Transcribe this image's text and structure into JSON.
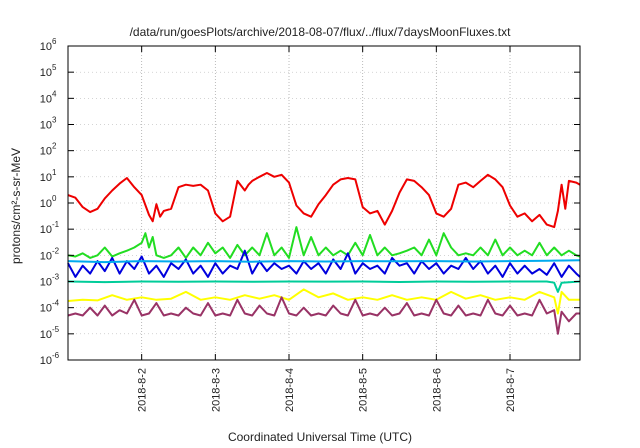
{
  "chart_data": {
    "type": "line",
    "title": "/data/run/goesPlots/archive/2018-08-07/flux/../flux/7daysMoonFluxes.txt",
    "xlabel": "Coordinated Universal Time (UTC)",
    "ylabel": "protons/cm²-s-sr-MeV",
    "y_scale": "log",
    "ylim": [
      1e-06,
      1000000.0
    ],
    "y_ticks": [
      {
        "label": "10",
        "exp": "-6",
        "value": 1e-06
      },
      {
        "label": "10",
        "exp": "-5",
        "value": 1e-05
      },
      {
        "label": "10",
        "exp": "-4",
        "value": 0.0001
      },
      {
        "label": "10",
        "exp": "-3",
        "value": 0.001
      },
      {
        "label": "10",
        "exp": "-2",
        "value": 0.01
      },
      {
        "label": "10",
        "exp": "-1",
        "value": 0.1
      },
      {
        "label": "10",
        "exp": "0",
        "value": 1
      },
      {
        "label": "10",
        "exp": "1",
        "value": 10
      },
      {
        "label": "10",
        "exp": "2",
        "value": 100
      },
      {
        "label": "10",
        "exp": "3",
        "value": 1000
      },
      {
        "label": "10",
        "exp": "4",
        "value": 10000
      },
      {
        "label": "10",
        "exp": "5",
        "value": 100000
      },
      {
        "label": "10",
        "exp": "6",
        "value": 1000000
      }
    ],
    "x_ticks": [
      "2018-8-2",
      "2018-8-3",
      "2018-8-4",
      "2018-8-5",
      "2018-8-6",
      "2018-8-7"
    ],
    "xlim_days": [
      1.0,
      7.95
    ],
    "grid": true,
    "series": [
      {
        "color": "#ee0000",
        "x": [
          1.0,
          1.1,
          1.2,
          1.3,
          1.4,
          1.5,
          1.6,
          1.7,
          1.8,
          1.9,
          2.0,
          2.1,
          2.15,
          2.2,
          2.25,
          2.3,
          2.4,
          2.5,
          2.6,
          2.7,
          2.8,
          2.9,
          3.0,
          3.1,
          3.2,
          3.3,
          3.4,
          3.45,
          3.5,
          3.6,
          3.7,
          3.8,
          3.9,
          4.0,
          4.1,
          4.2,
          4.3,
          4.4,
          4.5,
          4.6,
          4.7,
          4.8,
          4.9,
          5.0,
          5.1,
          5.2,
          5.3,
          5.4,
          5.5,
          5.6,
          5.7,
          5.8,
          5.9,
          6.0,
          6.1,
          6.2,
          6.3,
          6.4,
          6.5,
          6.6,
          6.7,
          6.8,
          6.9,
          7.0,
          7.1,
          7.2,
          7.3,
          7.4,
          7.5,
          7.6,
          7.65,
          7.7,
          7.75,
          7.8,
          7.9,
          7.95
        ],
        "values": [
          2,
          1.6,
          0.7,
          0.45,
          0.6,
          1.5,
          3,
          5.5,
          9,
          4,
          2,
          0.35,
          0.2,
          0.9,
          0.3,
          0.5,
          0.6,
          4,
          5,
          4.5,
          5,
          3,
          0.4,
          0.2,
          0.3,
          7,
          3,
          5,
          7,
          10,
          14,
          10,
          12,
          6,
          0.8,
          0.4,
          0.3,
          0.9,
          2,
          5,
          8,
          9,
          8,
          0.7,
          0.4,
          0.5,
          0.15,
          0.5,
          2.5,
          8,
          7,
          4,
          2,
          0.4,
          0.3,
          0.6,
          5,
          6,
          4,
          7,
          12,
          8,
          4,
          0.8,
          0.3,
          0.4,
          0.2,
          0.35,
          0.15,
          0.12,
          0.5,
          5,
          0.6,
          7,
          6,
          5
        ]
      },
      {
        "color": "#22dd22",
        "x": [
          1.0,
          1.1,
          1.2,
          1.3,
          1.4,
          1.5,
          1.6,
          1.7,
          1.8,
          1.9,
          2.0,
          2.05,
          2.1,
          2.15,
          2.2,
          2.3,
          2.4,
          2.5,
          2.6,
          2.7,
          2.8,
          2.9,
          3.0,
          3.1,
          3.2,
          3.3,
          3.4,
          3.5,
          3.6,
          3.7,
          3.8,
          3.9,
          4.0,
          4.1,
          4.2,
          4.3,
          4.4,
          4.5,
          4.6,
          4.7,
          4.8,
          4.9,
          5.0,
          5.1,
          5.2,
          5.3,
          5.4,
          5.5,
          5.6,
          5.7,
          5.8,
          5.9,
          6.0,
          6.1,
          6.2,
          6.3,
          6.4,
          6.5,
          6.6,
          6.7,
          6.8,
          6.9,
          7.0,
          7.1,
          7.2,
          7.3,
          7.4,
          7.5,
          7.6,
          7.7,
          7.8,
          7.9,
          7.95
        ],
        "values": [
          0.01,
          0.009,
          0.012,
          0.008,
          0.01,
          0.02,
          0.009,
          0.012,
          0.015,
          0.02,
          0.03,
          0.07,
          0.02,
          0.05,
          0.01,
          0.008,
          0.01,
          0.02,
          0.008,
          0.02,
          0.01,
          0.03,
          0.012,
          0.02,
          0.008,
          0.025,
          0.01,
          0.02,
          0.01,
          0.07,
          0.01,
          0.02,
          0.008,
          0.12,
          0.01,
          0.05,
          0.01,
          0.02,
          0.01,
          0.015,
          0.01,
          0.03,
          0.01,
          0.06,
          0.01,
          0.02,
          0.01,
          0.012,
          0.015,
          0.02,
          0.01,
          0.04,
          0.01,
          0.07,
          0.02,
          0.01,
          0.012,
          0.01,
          0.02,
          0.01,
          0.04,
          0.01,
          0.02,
          0.01,
          0.015,
          0.01,
          0.03,
          0.01,
          0.02,
          0.01,
          0.015,
          0.01,
          0.009
        ]
      },
      {
        "color": "#0000dd",
        "x": [
          1.0,
          1.1,
          1.2,
          1.3,
          1.4,
          1.5,
          1.6,
          1.7,
          1.8,
          1.9,
          2.0,
          2.1,
          2.2,
          2.3,
          2.4,
          2.5,
          2.6,
          2.7,
          2.8,
          2.9,
          3.0,
          3.1,
          3.2,
          3.3,
          3.4,
          3.5,
          3.6,
          3.7,
          3.8,
          3.9,
          4.0,
          4.1,
          4.2,
          4.3,
          4.4,
          4.5,
          4.6,
          4.7,
          4.8,
          4.9,
          5.0,
          5.1,
          5.2,
          5.3,
          5.4,
          5.5,
          5.6,
          5.7,
          5.8,
          5.9,
          6.0,
          6.1,
          6.2,
          6.3,
          6.4,
          6.5,
          6.6,
          6.7,
          6.8,
          6.9,
          7.0,
          7.1,
          7.2,
          7.3,
          7.4,
          7.5,
          7.6,
          7.7,
          7.8,
          7.9,
          7.95
        ],
        "values": [
          0.005,
          0.0015,
          0.004,
          0.002,
          0.006,
          0.0025,
          0.008,
          0.002,
          0.006,
          0.003,
          0.009,
          0.002,
          0.004,
          0.0015,
          0.005,
          0.003,
          0.007,
          0.002,
          0.004,
          0.0015,
          0.005,
          0.002,
          0.004,
          0.003,
          0.015,
          0.002,
          0.006,
          0.0025,
          0.005,
          0.003,
          0.004,
          0.002,
          0.006,
          0.003,
          0.005,
          0.002,
          0.007,
          0.003,
          0.012,
          0.002,
          0.005,
          0.003,
          0.004,
          0.002,
          0.008,
          0.004,
          0.005,
          0.002,
          0.006,
          0.003,
          0.005,
          0.002,
          0.004,
          0.003,
          0.008,
          0.003,
          0.006,
          0.002,
          0.004,
          0.0015,
          0.005,
          0.002,
          0.004,
          0.002,
          0.003,
          0.0018,
          0.005,
          0.0015,
          0.004,
          0.002,
          0.0015
        ]
      },
      {
        "color": "#00aaee",
        "x": [
          1.0,
          1.5,
          2.0,
          2.5,
          3.0,
          3.5,
          4.0,
          4.5,
          5.0,
          5.5,
          6.0,
          6.5,
          7.0,
          7.5,
          7.95
        ],
        "values": [
          0.006,
          0.0055,
          0.006,
          0.0058,
          0.006,
          0.0057,
          0.006,
          0.0058,
          0.006,
          0.0059,
          0.006,
          0.0058,
          0.006,
          0.0062,
          0.0065
        ]
      },
      {
        "color": "#00cc99",
        "x": [
          1.0,
          1.5,
          2.0,
          2.5,
          3.0,
          3.5,
          4.0,
          4.5,
          5.0,
          5.5,
          6.0,
          6.5,
          7.0,
          7.5,
          7.6,
          7.65,
          7.7,
          7.95
        ],
        "values": [
          0.001,
          0.00095,
          0.001,
          0.00098,
          0.001,
          0.00097,
          0.001,
          0.00099,
          0.001,
          0.00096,
          0.001,
          0.00098,
          0.001,
          0.001,
          0.0009,
          0.0004,
          0.0009,
          0.001
        ]
      },
      {
        "color": "#ffff00",
        "x": [
          1.0,
          1.2,
          1.4,
          1.6,
          1.8,
          2.0,
          2.2,
          2.4,
          2.6,
          2.8,
          3.0,
          3.2,
          3.4,
          3.6,
          3.8,
          4.0,
          4.2,
          4.4,
          4.6,
          4.8,
          5.0,
          5.2,
          5.4,
          5.6,
          5.8,
          6.0,
          6.2,
          6.4,
          6.6,
          6.8,
          7.0,
          7.2,
          7.4,
          7.6,
          7.65,
          7.7,
          7.8,
          7.95
        ],
        "values": [
          0.00018,
          0.0002,
          0.00019,
          0.0003,
          0.0002,
          0.00025,
          0.0002,
          0.00022,
          0.0004,
          0.0002,
          0.00025,
          0.0002,
          0.0003,
          0.00022,
          0.0003,
          0.0002,
          0.0005,
          0.00025,
          0.00035,
          0.0002,
          0.00025,
          0.0002,
          0.0003,
          0.0002,
          0.00025,
          0.0002,
          0.0004,
          0.00022,
          0.0003,
          0.0002,
          0.00025,
          0.0002,
          0.0004,
          0.00025,
          6e-05,
          0.0004,
          0.0002,
          0.0002
        ]
      },
      {
        "color": "#993366",
        "x": [
          1.0,
          1.1,
          1.2,
          1.3,
          1.4,
          1.5,
          1.6,
          1.7,
          1.8,
          1.9,
          2.0,
          2.1,
          2.2,
          2.3,
          2.4,
          2.5,
          2.6,
          2.7,
          2.8,
          2.9,
          3.0,
          3.1,
          3.2,
          3.3,
          3.4,
          3.5,
          3.6,
          3.7,
          3.8,
          3.9,
          4.0,
          4.1,
          4.2,
          4.3,
          4.4,
          4.5,
          4.6,
          4.7,
          4.8,
          4.9,
          5.0,
          5.1,
          5.2,
          5.3,
          5.4,
          5.5,
          5.6,
          5.7,
          5.8,
          5.9,
          6.0,
          6.1,
          6.2,
          6.3,
          6.4,
          6.5,
          6.6,
          6.7,
          6.8,
          6.9,
          7.0,
          7.1,
          7.2,
          7.3,
          7.4,
          7.5,
          7.6,
          7.65,
          7.7,
          7.8,
          7.9,
          7.95
        ],
        "values": [
          5e-05,
          6e-05,
          5e-05,
          0.0001,
          5e-05,
          0.00012,
          5e-05,
          8e-05,
          6e-05,
          0.0002,
          5e-05,
          6e-05,
          0.00015,
          5e-05,
          6e-05,
          5e-05,
          0.0001,
          6e-05,
          5e-05,
          0.00015,
          5e-05,
          6e-05,
          5e-05,
          0.0002,
          6e-05,
          5e-05,
          0.00012,
          6e-05,
          5e-05,
          0.00025,
          6e-05,
          5e-05,
          0.0001,
          5e-05,
          6e-05,
          5e-05,
          0.00012,
          6e-05,
          5e-05,
          0.0002,
          5e-05,
          6e-05,
          5e-05,
          0.0001,
          5e-05,
          6e-05,
          0.00015,
          5e-05,
          6e-05,
          5e-05,
          0.0002,
          6e-05,
          5e-05,
          0.00012,
          5e-05,
          6e-05,
          5e-05,
          0.0002,
          6e-05,
          5e-05,
          0.00012,
          5e-05,
          6e-05,
          5e-05,
          0.0002,
          6e-05,
          8e-05,
          1e-05,
          7e-05,
          3e-05,
          6e-05,
          6e-05
        ]
      }
    ]
  }
}
